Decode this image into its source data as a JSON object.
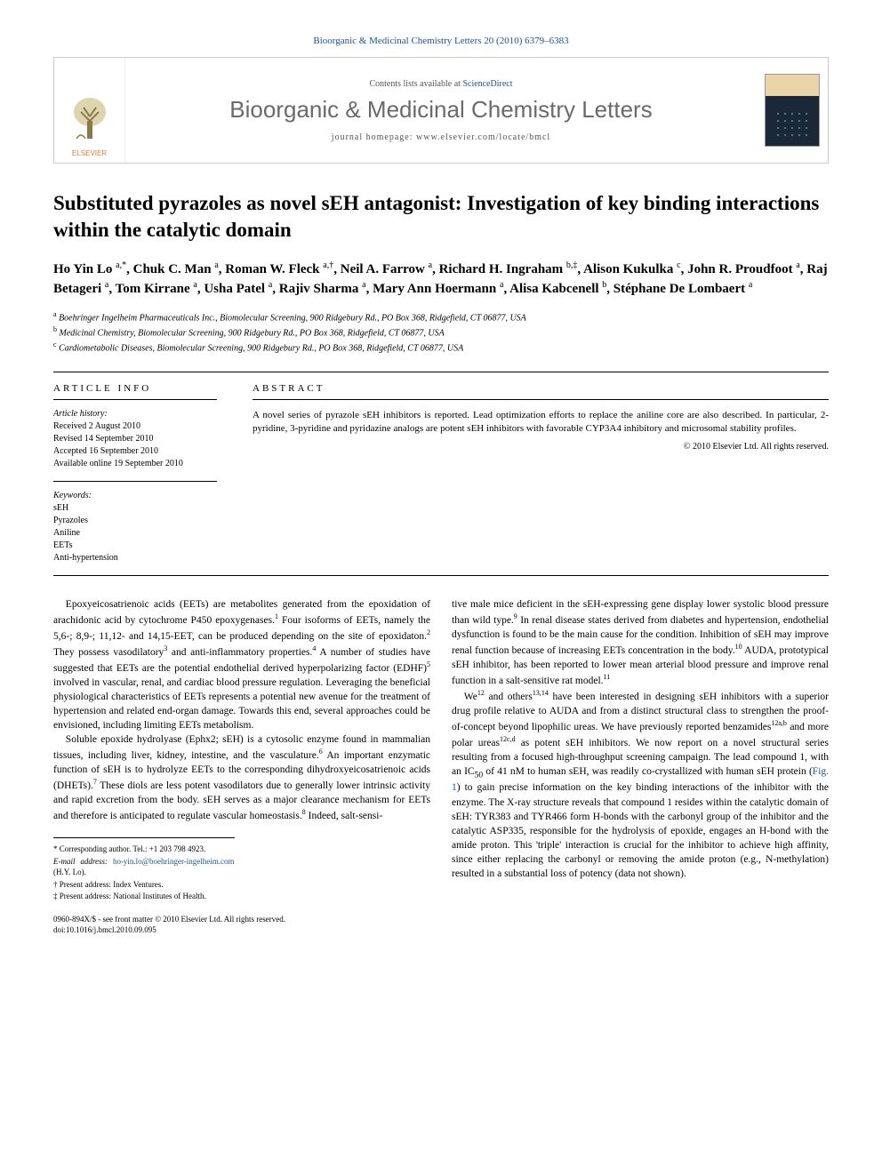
{
  "header": {
    "citation": "Bioorganic & Medicinal Chemistry Letters 20 (2010) 6379–6383"
  },
  "banner": {
    "publisher": "ELSEVIER",
    "contents_prefix": "Contents lists available at ",
    "contents_link": "ScienceDirect",
    "journal_name": "Bioorganic & Medicinal Chemistry Letters",
    "homepage_prefix": "journal homepage: ",
    "homepage_url": "www.elsevier.com/locate/bmcl"
  },
  "title": "Substituted pyrazoles as novel sEH antagonist: Investigation of key binding interactions within the catalytic domain",
  "authors_html": "Ho Yin Lo <sup>a,*</sup>, Chuk C. Man <sup>a</sup>, Roman W. Fleck <sup>a,†</sup>, Neil A. Farrow <sup>a</sup>, Richard H. Ingraham <sup>b,‡</sup>, Alison Kukulka <sup>c</sup>, John R. Proudfoot <sup>a</sup>, Raj Betageri <sup>a</sup>, Tom Kirrane <sup>a</sup>, Usha Patel <sup>a</sup>, Rajiv Sharma <sup>a</sup>, Mary Ann Hoermann <sup>a</sup>, Alisa Kabcenell <sup>b</sup>,  Stéphane De Lombaert <sup>a</sup>",
  "affiliations": [
    {
      "sup": "a",
      "text": "Boehringer Ingelheim Pharmaceuticals Inc., Biomolecular Screening, 900 Ridgebury Rd., PO Box 368, Ridgefield, CT 06877, USA"
    },
    {
      "sup": "b",
      "text": "Medicinal Chemistry, Biomolecular Screening, 900 Ridgebury Rd., PO Box 368, Ridgefield, CT 06877, USA"
    },
    {
      "sup": "c",
      "text": "Cardiometabolic Diseases, Biomolecular Screening, 900 Ridgebury Rd., PO Box 368, Ridgefield, CT 06877, USA"
    }
  ],
  "article_info": {
    "heading": "ARTICLE INFO",
    "history_label": "Article history:",
    "history": [
      "Received 2 August 2010",
      "Revised 14 September 2010",
      "Accepted 16 September 2010",
      "Available online 19 September 2010"
    ],
    "keywords_label": "Keywords:",
    "keywords": [
      "sEH",
      "Pyrazoles",
      "Aniline",
      "EETs",
      "Anti-hypertension"
    ]
  },
  "abstract": {
    "heading": "ABSTRACT",
    "text": "A novel series of pyrazole sEH inhibitors is reported. Lead optimization efforts to replace the aniline core are also described. In particular, 2-pyridine, 3-pyridine and pyridazine analogs are potent sEH inhibitors with favorable CYP3A4 inhibitory and microsomal stability profiles.",
    "copyright": "© 2010 Elsevier Ltd. All rights reserved."
  },
  "body": {
    "col1": {
      "p1": "Epoxyeicosatrienoic acids (EETs) are metabolites generated from the epoxidation of arachidonic acid by cytochrome P450 epoxygenases.<sup>1</sup> Four isoforms of EETs, namely the 5,6-; 8,9-; 11,12- and 14,15-EET, can be produced depending on the site of epoxidaton.<sup>2</sup> They possess vasodilatory<sup>3</sup> and anti-inflammatory properties.<sup>4</sup> A number of studies have suggested that EETs are the potential endothelial derived hyperpolarizing factor (EDHF)<sup>5</sup> involved in vascular, renal, and cardiac blood pressure regulation. Leveraging the beneficial physiological characteristics of EETs represents a potential new avenue for the treatment of hypertension and related end-organ damage. Towards this end, several approaches could be envisioned, including limiting EETs metabolism.",
      "p2": "Soluble epoxide hydrolyase (Ephx2; sEH) is a cytosolic enzyme found in mammalian tissues, including liver, kidney, intestine, and the vasculature.<sup>6</sup> An important enzymatic function of sEH is to hydrolyze EETs to the corresponding dihydroxyeicosatrienoic acids (DHETs).<sup>7</sup> These diols are less potent vasodilators due to generally lower intrinsic activity and rapid excretion from the body. sEH serves as a major clearance mechanism for EETs and therefore is anticipated to regulate vascular homeostasis.<sup>8</sup> Indeed, salt-sensi-"
    },
    "col2": {
      "p1": "tive male mice deficient in the sEH-expressing gene display lower systolic blood pressure than wild type.<sup>9</sup> In renal disease states derived from diabetes and hypertension, endothelial dysfunction is found to be the main cause for the condition. Inhibition of sEH may improve renal function because of increasing EETs concentration in the body.<sup>10</sup> AUDA, prototypical sEH inhibitor, has been reported to lower mean arterial blood pressure and improve renal function in a salt-sensitive rat model.<sup>11</sup>",
      "p2": "We<sup>12</sup> and others<sup>13,14</sup> have been interested in designing sEH inhibitors with a superior drug profile relative to AUDA and from a distinct structural class to strengthen the proof-of-concept beyond lipophilic ureas. We have previously reported benzamides<sup>12a,b</sup> and more polar ureas<sup>12c,d</sup> as potent sEH inhibitors. We now report on a novel structural series resulting from a focused high-throughput screening campaign. The lead compound 1, with an IC<sub>50</sub> of 41 nM to human sEH, was readily co-crystallized with human sEH protein (<a class='ref'>Fig. 1</a>) to gain precise information on the key binding interactions of the inhibitor with the enzyme. The X-ray structure reveals that compound 1 resides within the catalytic domain of sEH: TYR383 and TYR466 form H-bonds with the carbonyl group of the inhibitor and the catalytic ASP335, responsible for the hydrolysis of epoxide, engages an H-bond with the amide proton. This 'triple' interaction is crucial for the inhibitor to achieve high affinity, since either replacing the carbonyl or removing the amide proton (e.g., N-methylation) resulted in a substantial loss of potency (data not shown)."
    }
  },
  "footnotes": {
    "corresponding": "* Corresponding author. Tel.: +1 203 798 4923.",
    "email_label": "E-mail address: ",
    "email": "ho-yin.lo@boehringer-ingelheim.com",
    "email_suffix": " (H.Y. Lo).",
    "dagger": "† Present address: Index Ventures.",
    "ddagger": "‡ Present address: National Institutes of Health."
  },
  "footer": {
    "line1": "0960-894X/$ - see front matter © 2010 Elsevier Ltd. All rights reserved.",
    "line2": "doi:10.1016/j.bmcl.2010.09.095"
  },
  "colors": {
    "link": "#1a5490",
    "publisher": "#e87a2a",
    "journal_gray": "#6a6a6a"
  }
}
